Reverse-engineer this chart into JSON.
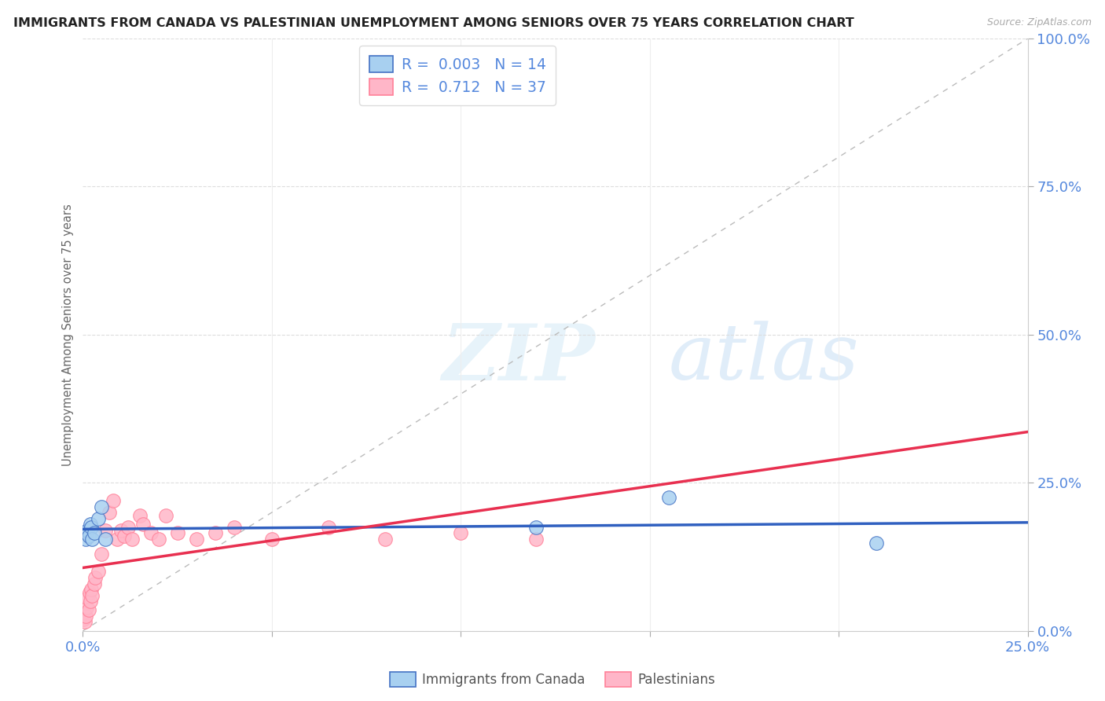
{
  "title": "IMMIGRANTS FROM CANADA VS PALESTINIAN UNEMPLOYMENT AMONG SENIORS OVER 75 YEARS CORRELATION CHART",
  "source": "Source: ZipAtlas.com",
  "ylabel_label": "Unemployment Among Seniors over 75 years",
  "legend_label_1": "Immigrants from Canada",
  "legend_label_2": "Palestinians",
  "r1": "0.003",
  "n1": "14",
  "r2": "0.712",
  "n2": "37",
  "color_blue_fill": "#a8d0f0",
  "color_blue_edge": "#4472c4",
  "color_pink_fill": "#ffb6c8",
  "color_pink_edge": "#ff8098",
  "color_trend_blue": "#3060c0",
  "color_trend_pink": "#e83050",
  "color_diag": "#cccccc",
  "color_axis_text": "#5588dd",
  "color_title": "#222222",
  "color_source": "#aaaaaa",
  "canada_x": [
    0.0008,
    0.001,
    0.0012,
    0.0015,
    0.002,
    0.0022,
    0.0025,
    0.003,
    0.004,
    0.005,
    0.006,
    0.12,
    0.155,
    0.21
  ],
  "canada_y": [
    0.155,
    0.165,
    0.17,
    0.16,
    0.18,
    0.175,
    0.155,
    0.165,
    0.19,
    0.21,
    0.155,
    0.175,
    0.225,
    0.148
  ],
  "pal_x": [
    0.0002,
    0.0004,
    0.0006,
    0.0008,
    0.001,
    0.0012,
    0.0015,
    0.0018,
    0.002,
    0.0022,
    0.0025,
    0.003,
    0.0032,
    0.004,
    0.005,
    0.006,
    0.007,
    0.008,
    0.009,
    0.01,
    0.011,
    0.012,
    0.013,
    0.015,
    0.016,
    0.018,
    0.02,
    0.022,
    0.025,
    0.03,
    0.035,
    0.04,
    0.05,
    0.065,
    0.08,
    0.1,
    0.12
  ],
  "pal_y": [
    0.02,
    0.03,
    0.015,
    0.025,
    0.04,
    0.055,
    0.035,
    0.065,
    0.05,
    0.07,
    0.06,
    0.08,
    0.09,
    0.1,
    0.13,
    0.17,
    0.2,
    0.22,
    0.155,
    0.17,
    0.16,
    0.175,
    0.155,
    0.195,
    0.18,
    0.165,
    0.155,
    0.195,
    0.165,
    0.155,
    0.165,
    0.175,
    0.155,
    0.175,
    0.155,
    0.165,
    0.155
  ],
  "xlim": [
    0.0,
    0.25
  ],
  "ylim": [
    0.0,
    1.0
  ],
  "yticks": [
    0.0,
    0.25,
    0.5,
    0.75,
    1.0
  ],
  "background_color": "#ffffff",
  "grid_color": "#eeeeee",
  "grid_dash_color": "#dddddd"
}
